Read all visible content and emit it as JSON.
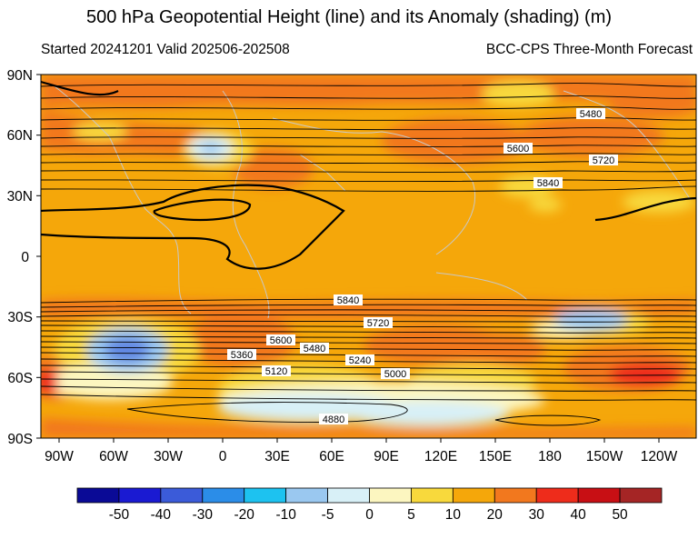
{
  "title": "500 hPa Geopotential Height (line) and its Anomaly (shading) (m)",
  "subtitle_left": "Started 20241201  Valid 202506-202508",
  "subtitle_right": "BCC-CPS Three-Month Forecast",
  "lat_labels": [
    "90N",
    "60N",
    "30N",
    "0",
    "30S",
    "60S",
    "90S"
  ],
  "lon_labels": [
    "90W",
    "60W",
    "30W",
    "0",
    "30E",
    "60E",
    "90E",
    "120E",
    "150E",
    "180",
    "150W",
    "120W"
  ],
  "contour_labels": [
    "5480",
    "5600",
    "5720",
    "5840",
    "5840",
    "5720",
    "5600",
    "5480",
    "5360",
    "5240",
    "5120",
    "5000",
    "4880"
  ],
  "colorbar": {
    "colors": [
      "#0a0a96",
      "#1a1ad2",
      "#3b5bd9",
      "#2b8de8",
      "#1dc2f0",
      "#9ac8f0",
      "#d8f0f7",
      "#fcf6c0",
      "#f8d93c",
      "#f5a70a",
      "#f2781e",
      "#ee2c1b",
      "#c80f14",
      "#a52525"
    ],
    "labels": [
      "-50",
      "-40",
      "-30",
      "-20",
      "-10",
      "-5",
      "0",
      "5",
      "10",
      "20",
      "30",
      "40",
      "50"
    ]
  }
}
